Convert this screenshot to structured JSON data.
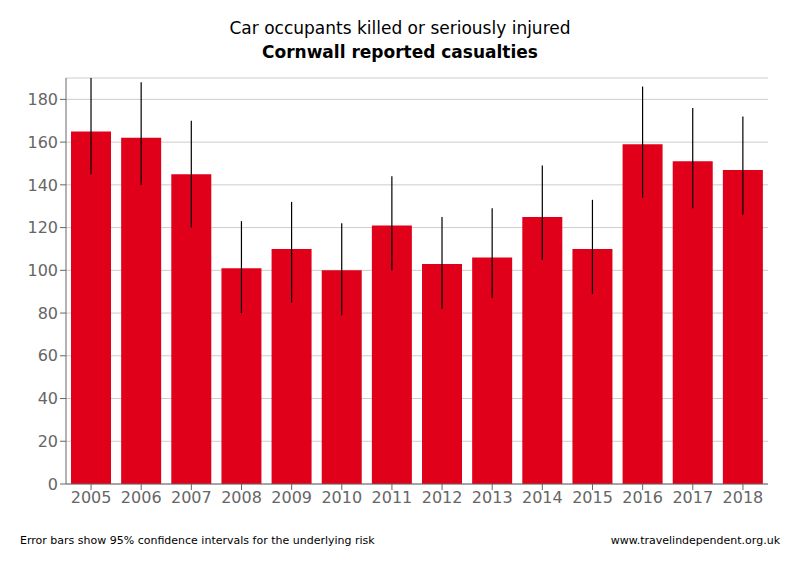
{
  "chart_data": {
    "type": "bar",
    "title": "Car occupants killed or seriously injured",
    "subtitle": "Cornwall reported casualties",
    "categories": [
      "2005",
      "2006",
      "2007",
      "2008",
      "2009",
      "2010",
      "2011",
      "2012",
      "2013",
      "2014",
      "2015",
      "2016",
      "2017",
      "2018"
    ],
    "values": [
      165,
      162,
      145,
      101,
      110,
      100,
      121,
      103,
      106,
      125,
      110,
      159,
      151,
      147
    ],
    "err_low": [
      20,
      22,
      25,
      21,
      25,
      21,
      21,
      21,
      19,
      20,
      21,
      25,
      22,
      21
    ],
    "err_high": [
      25,
      26,
      25,
      22,
      22,
      22,
      23,
      22,
      23,
      24,
      23,
      27,
      25,
      25
    ],
    "color": "#e0001a",
    "ylim": [
      0,
      190
    ],
    "yticks": [
      0,
      20,
      40,
      60,
      80,
      100,
      120,
      140,
      160,
      180
    ],
    "grid": true,
    "annotations": [
      "Error bars show 95% confidence intervals for the underlying risk",
      "www.travelindependent.org.uk"
    ]
  }
}
